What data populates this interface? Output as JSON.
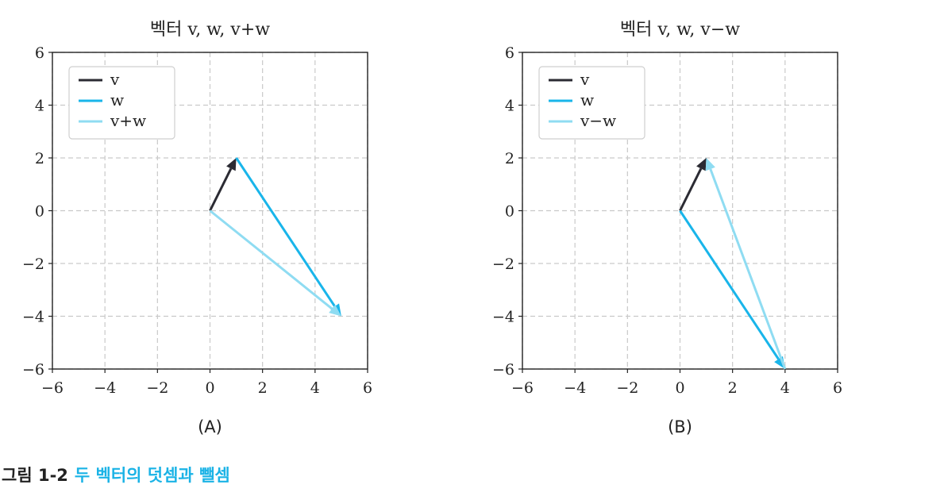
{
  "caption": {
    "label": "그림 1-2",
    "text": "두 벡터의 덧셈과 뺄셈"
  },
  "colors": {
    "v": "#2b2b33",
    "w": "#19b5ea",
    "result": "#8fdcf2"
  },
  "chart_data": [
    {
      "type": "line",
      "title": "벡터 v, w, v+w",
      "panel_label": "(A)",
      "xlim": [
        -6,
        6
      ],
      "ylim": [
        -6,
        6
      ],
      "xticks": [
        -6,
        -4,
        -2,
        0,
        2,
        4,
        6
      ],
      "yticks": [
        -6,
        -4,
        -2,
        0,
        2,
        4,
        6
      ],
      "grid": true,
      "legend": {
        "position": "top-left",
        "entries": [
          "v",
          "w",
          "v+w"
        ]
      },
      "series": [
        {
          "name": "v",
          "from": [
            0,
            0
          ],
          "to": [
            1,
            2
          ],
          "color_key": "v"
        },
        {
          "name": "w",
          "from": [
            1,
            2
          ],
          "to": [
            5,
            -4
          ],
          "color_key": "w"
        },
        {
          "name": "v+w",
          "from": [
            0,
            0
          ],
          "to": [
            5,
            -4
          ],
          "color_key": "result"
        }
      ]
    },
    {
      "type": "line",
      "title": "벡터 v, w, v−w",
      "panel_label": "(B)",
      "xlim": [
        -6,
        6
      ],
      "ylim": [
        -6,
        6
      ],
      "xticks": [
        -6,
        -4,
        -2,
        0,
        2,
        4,
        6
      ],
      "yticks": [
        -6,
        -4,
        -2,
        0,
        2,
        4,
        6
      ],
      "grid": true,
      "legend": {
        "position": "top-left",
        "entries": [
          "v",
          "w",
          "v−w"
        ]
      },
      "series": [
        {
          "name": "v",
          "from": [
            0,
            0
          ],
          "to": [
            1,
            2
          ],
          "color_key": "v"
        },
        {
          "name": "w",
          "from": [
            0,
            0
          ],
          "to": [
            4,
            -6
          ],
          "color_key": "w"
        },
        {
          "name": "v−w",
          "from": [
            4,
            -6
          ],
          "to": [
            1,
            2
          ],
          "color_key": "result"
        }
      ]
    }
  ]
}
